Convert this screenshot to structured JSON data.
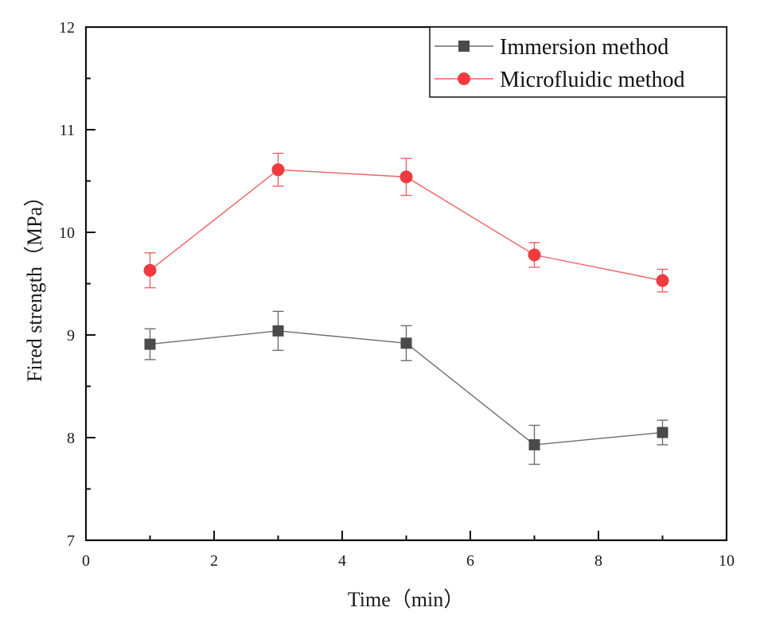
{
  "chart_data": {
    "type": "line",
    "title": "",
    "xlabel": "Time（min）",
    "ylabel": "Fired strength（MPa）",
    "xlim": [
      0,
      10
    ],
    "ylim": [
      7,
      12
    ],
    "xticks": [
      0,
      2,
      4,
      6,
      8,
      10
    ],
    "xtick_labels": [
      "0",
      "2",
      "4",
      "6",
      "8",
      "10"
    ],
    "yticks": [
      7,
      8,
      9,
      10,
      11,
      12
    ],
    "ytick_labels": [
      "7",
      "8",
      "9",
      "10",
      "11",
      "12"
    ],
    "x_minor_ticks": [
      1,
      3,
      5,
      7,
      9
    ],
    "y_minor_ticks": [
      7.5,
      8.5,
      9.5,
      10.5,
      11.5
    ],
    "grid": false,
    "legend_position": "top-right",
    "x": [
      1,
      3,
      5,
      7,
      9
    ],
    "series": [
      {
        "name": "Immersion method",
        "marker": "square",
        "color": "#4a4a4a",
        "line_color": "#6e6e6e",
        "values": [
          8.91,
          9.04,
          8.92,
          7.93,
          8.05
        ],
        "errors": [
          0.15,
          0.19,
          0.17,
          0.19,
          0.12
        ]
      },
      {
        "name": "Microfluidic method",
        "marker": "circle",
        "color": "#ef3b3f",
        "line_color": "#f06064",
        "values": [
          9.63,
          10.61,
          10.54,
          9.78,
          9.53
        ],
        "errors": [
          0.17,
          0.16,
          0.18,
          0.12,
          0.11
        ]
      }
    ]
  }
}
